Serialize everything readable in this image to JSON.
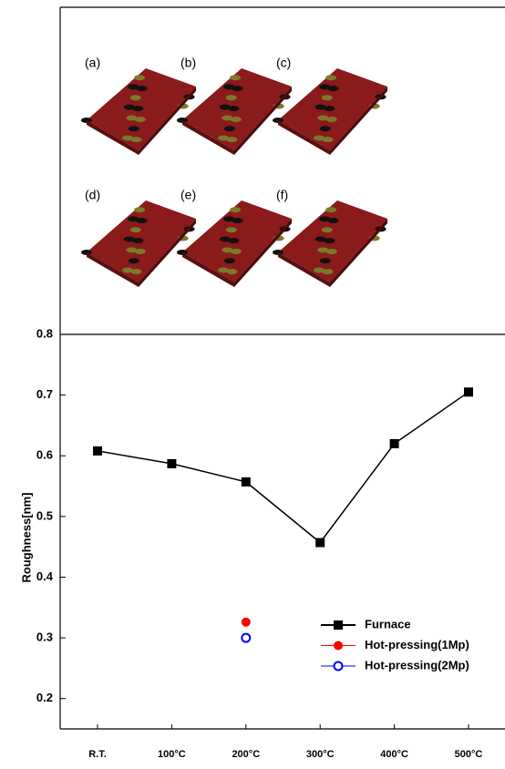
{
  "figure_panels": [
    "(a)",
    "(b)",
    "(c)",
    "(d)",
    "(e)",
    "(f)"
  ],
  "chart_data": {
    "type": "line",
    "y_label": "Roughness[nm]",
    "categories": [
      "R.T.",
      "100°C",
      "200°C",
      "300°C",
      "400°C",
      "500°C"
    ],
    "series": [
      {
        "name": "Furnace",
        "color": "#000000",
        "marker": "square",
        "line": true,
        "values": [
          0.608,
          0.587,
          0.557,
          0.457,
          0.62,
          0.705
        ]
      },
      {
        "name": "Hot-pressing(1Mp)",
        "color": "#ff0000",
        "marker": "circle",
        "line": false,
        "values": [
          null,
          null,
          0.326,
          null,
          null,
          null
        ]
      },
      {
        "name": "Hot-pressing(2Mp)",
        "color": "#0000ff",
        "marker": "circle-open",
        "line": false,
        "values": [
          null,
          null,
          0.3,
          null,
          null,
          null
        ]
      }
    ],
    "ylim": [
      0.15,
      0.8
    ],
    "yticks": [
      0.2,
      0.3,
      0.4,
      0.5,
      0.6,
      0.7,
      0.8
    ],
    "legend": "lower right"
  }
}
